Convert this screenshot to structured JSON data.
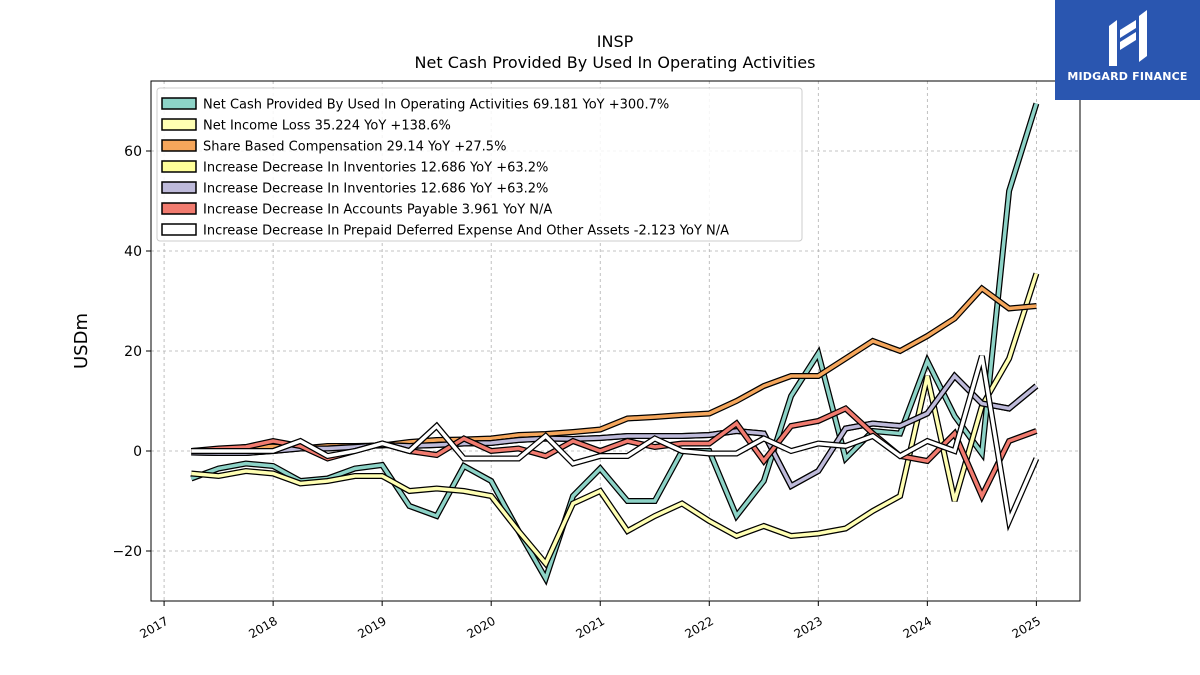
{
  "brand": {
    "name": "MIDGARD FINANCE",
    "bg_color": "#2a56b0"
  },
  "chart_data": {
    "type": "line",
    "title": "INSP",
    "subtitle": "Net Cash Provided By Used In Operating Activities",
    "ylabel": "USDm",
    "xlabel": "",
    "xlim": [
      2016.88,
      2025.4
    ],
    "ylim": [
      -30,
      74
    ],
    "xticks": [
      2017,
      2018,
      2019,
      2020,
      2021,
      2022,
      2023,
      2024,
      2025
    ],
    "xtick_labels": [
      "2017",
      "2018",
      "2019",
      "2020",
      "2021",
      "2022",
      "2023",
      "2024",
      "2025"
    ],
    "yticks": [
      -20,
      0,
      20,
      40,
      60
    ],
    "ytick_labels": [
      "−20",
      "0",
      "20",
      "40",
      "60"
    ],
    "grid": true,
    "legend_position": "top-left",
    "x": [
      2017.25,
      2017.5,
      2017.75,
      2018.0,
      2018.25,
      2018.5,
      2018.75,
      2019.0,
      2019.25,
      2019.5,
      2019.75,
      2020.0,
      2020.25,
      2020.5,
      2020.75,
      2021.0,
      2021.25,
      2021.5,
      2021.75,
      2022.0,
      2022.25,
      2022.5,
      2022.75,
      2023.0,
      2023.25,
      2023.5,
      2023.75,
      2024.0,
      2024.25,
      2024.5,
      2024.75,
      2025.0
    ],
    "series": [
      {
        "name": "Net Cash Provided By Used In Operating Activities  69.181 YoY +300.7%",
        "color": "#8dd3c7",
        "values": [
          -5.5,
          -3.5,
          -2.5,
          -3,
          -6,
          -5.5,
          -3.5,
          -2.8,
          -11,
          -13,
          -3,
          -6,
          -16,
          -25.5,
          -9,
          -3.5,
          -10,
          -10,
          0,
          0,
          -13,
          -6,
          11,
          19.5,
          -1.5,
          4,
          3.5,
          18,
          7,
          -0.5,
          52,
          69.5
        ]
      },
      {
        "name": "Net Income Loss  35.224 YoY +138.6%",
        "color": "#ffffb3",
        "values": [
          -4.5,
          -5,
          -4,
          -4.5,
          -6.5,
          -6,
          -5,
          -5,
          -8,
          -7.5,
          -8,
          -9,
          -16,
          -22.5,
          -10.5,
          -8,
          -16,
          -13,
          -10.5,
          -14,
          -17,
          -15,
          -17,
          -16.5,
          -15.5,
          -12,
          -9,
          15,
          -10,
          9,
          18.5,
          35.5
        ]
      },
      {
        "name": "Share Based Compensation  29.14 YoY +27.5%",
        "color": "#f5a65b",
        "values": [
          0,
          0.3,
          0.8,
          0.9,
          0.5,
          1,
          1,
          1.1,
          1.8,
          2.2,
          2.3,
          2.5,
          3.2,
          3.4,
          3.8,
          4.3,
          6.5,
          6.8,
          7.2,
          7.5,
          10,
          13,
          15,
          15,
          18.5,
          22,
          20,
          23,
          26.5,
          32.5,
          28.5,
          29
        ]
      },
      {
        "name": "Increase Decrease In Inventories  12.686 YoY +63.2%",
        "color": "#ffff99",
        "values": [
          -0.3,
          -0.4,
          -0.4,
          0,
          0.5,
          0.5,
          0.8,
          1.2,
          1,
          1.2,
          1.5,
          1.6,
          2.2,
          2.5,
          2.4,
          2.6,
          3,
          3,
          3,
          3.2,
          4,
          3.5,
          -7,
          -4,
          4.5,
          5.5,
          5,
          7.5,
          15,
          9.5,
          8.5,
          13
        ]
      },
      {
        "name": "Increase Decrease In Inventories  12.686 YoY +63.2%",
        "color": "#bebada",
        "values": [
          -0.3,
          -0.4,
          -0.4,
          0,
          0.5,
          0.5,
          0.8,
          1.2,
          1,
          1.2,
          1.5,
          1.6,
          2.2,
          2.5,
          2.4,
          2.6,
          3,
          3,
          3,
          3.2,
          4,
          3.5,
          -7,
          -4,
          4.5,
          5.5,
          5,
          7.5,
          15,
          9.5,
          8.5,
          13
        ]
      },
      {
        "name": "Increase Decrease In Accounts Payable  3.961 YoY N/A",
        "color": "#f17b6f",
        "values": [
          0,
          0.5,
          0.8,
          2,
          1,
          -1.5,
          0,
          1.5,
          0,
          -0.8,
          2.5,
          0,
          0.5,
          -1,
          2,
          0,
          2,
          0.8,
          1.5,
          1.5,
          5.5,
          -2,
          5,
          6,
          8.5,
          3.5,
          -1,
          -2,
          3.5,
          -9,
          2,
          4
        ]
      },
      {
        "name": "Increase Decrease In Prepaid Deferred Expense And Other Assets  -2.123 YoY N/A",
        "color": "#ffffff",
        "values": [
          0,
          0,
          0,
          0,
          2,
          -1,
          0,
          1.5,
          0,
          5,
          -1.5,
          -1.5,
          -1.5,
          3,
          -2.5,
          -1,
          -1,
          2.5,
          0,
          -0.5,
          -0.5,
          2.5,
          0,
          1.5,
          1,
          3,
          -1,
          2,
          0,
          19,
          -14,
          -1.5
        ]
      }
    ]
  }
}
